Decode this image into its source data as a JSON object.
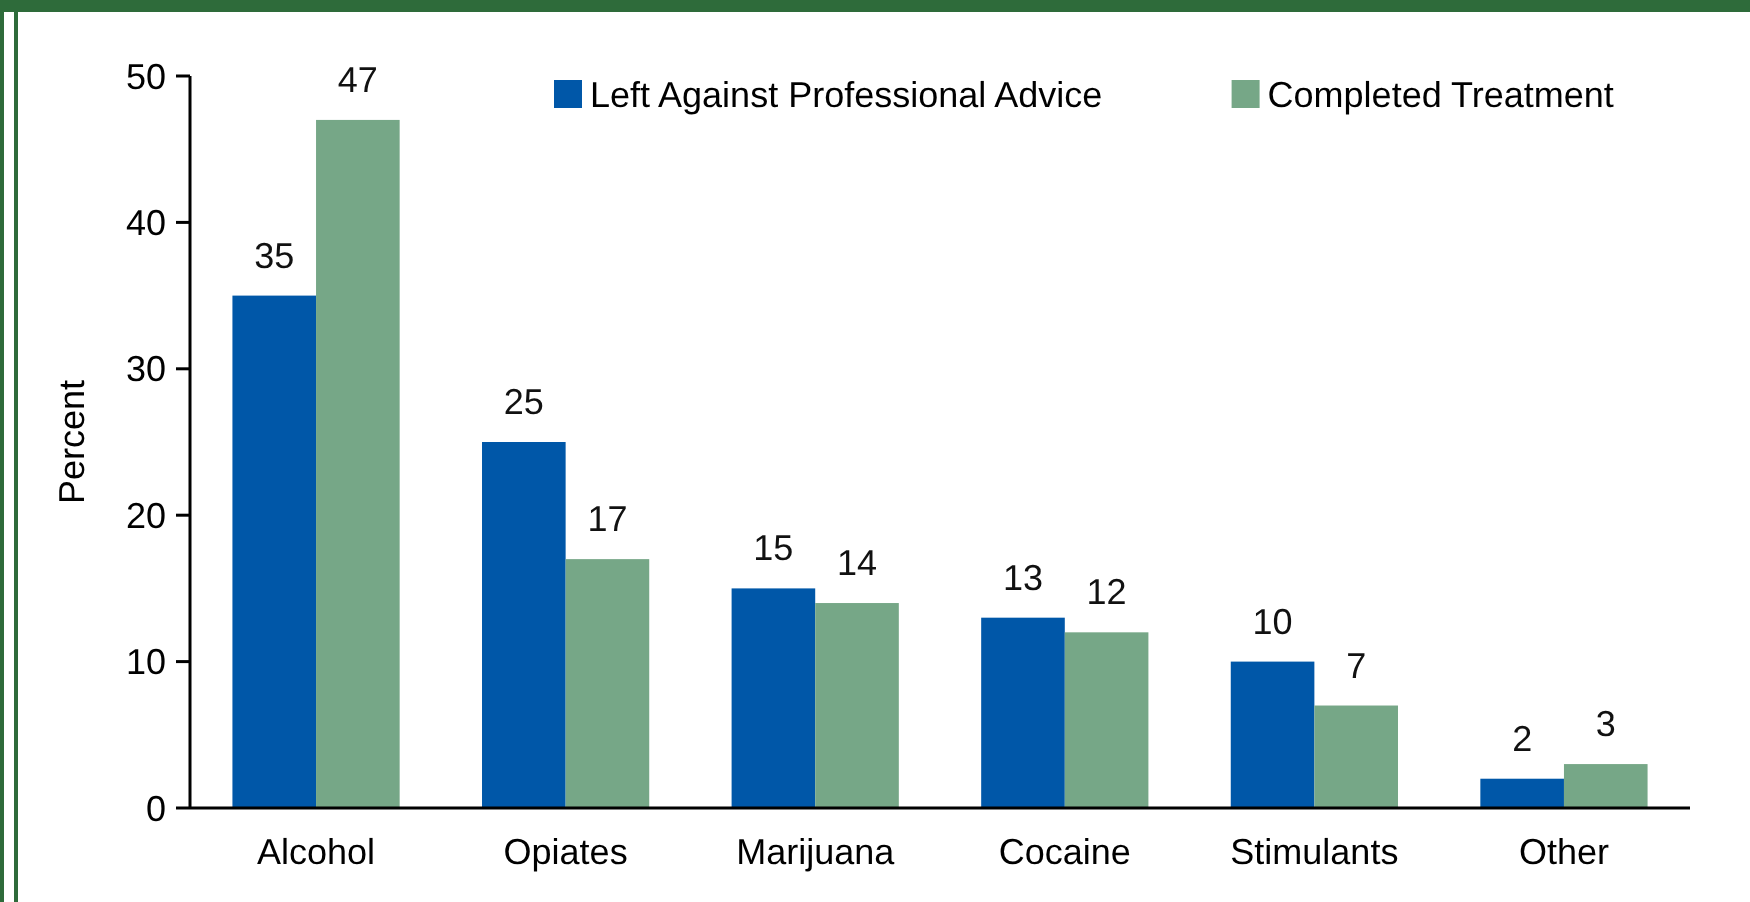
{
  "chart_data": {
    "type": "bar",
    "ylabel": "Percent",
    "categories": [
      "Alcohol",
      "Opiates",
      "Marijuana",
      "Cocaine",
      "Stimulants",
      "Other"
    ],
    "series": [
      {
        "name": "Left Against Professional Advice",
        "color": "#0057a8",
        "values": [
          35,
          25,
          15,
          13,
          10,
          2
        ]
      },
      {
        "name": "Completed Treatment",
        "color": "#76a787",
        "values": [
          47,
          17,
          14,
          12,
          7,
          3
        ]
      }
    ],
    "ylim": [
      0,
      50
    ],
    "yticks": [
      0,
      10,
      20,
      30,
      40,
      50
    ],
    "grid": false,
    "legend": "top right",
    "data_labels": true
  }
}
